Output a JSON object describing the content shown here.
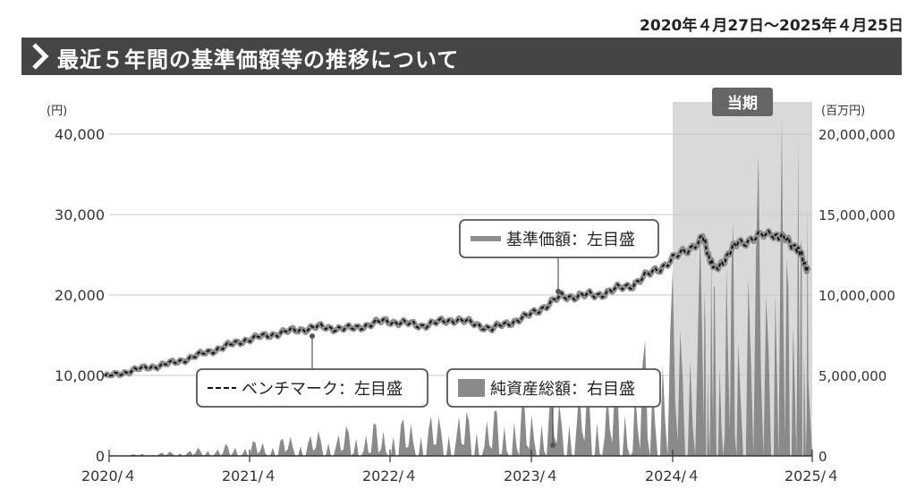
{
  "header": {
    "date_range": "2020年４月27日～2025年４月25日",
    "title": "最近５年間の基準価額等の推移について"
  },
  "colors": {
    "banner": "#454545",
    "nav": "#8f8f8f",
    "benchmark": "#111111",
    "area": "#8a8a8a",
    "period": "#d9d9d9",
    "grid": "#c8c8c8"
  },
  "chart_data": {
    "type": "line",
    "left_axis": {
      "unit": "(円)",
      "ylim": [
        0,
        40000
      ],
      "ticks": [
        "40,000",
        "30,000",
        "20,000",
        "10,000",
        "0"
      ],
      "tick_values": [
        40000,
        30000,
        20000,
        10000,
        0
      ]
    },
    "right_axis": {
      "unit": "(百万円)",
      "ylim": [
        0,
        20000000
      ],
      "ticks": [
        "20,000,000",
        "15,000,000",
        "10,000,000",
        "5,000,000",
        "0"
      ]
    },
    "x_ticks": [
      "2020/４",
      "2021/４",
      "2022/４",
      "2023/４",
      "2024/４",
      "2025/４"
    ],
    "current_period": {
      "label": "当期",
      "start": "2024-04",
      "end": "2025-04"
    },
    "legend": {
      "nav": "基準価額：左目盛",
      "benchmark": "ベンチマーク：左目盛",
      "net_assets": "純資産総額：右目盛"
    },
    "x": [
      "2020-04",
      "2020-07",
      "2020-10",
      "2021-01",
      "2021-04",
      "2021-07",
      "2021-10",
      "2022-01",
      "2022-04",
      "2022-07",
      "2022-10",
      "2023-01",
      "2023-04",
      "2023-07",
      "2023-10",
      "2024-01",
      "2024-04",
      "2024-07",
      "2024-08",
      "2024-10",
      "2025-01",
      "2025-03",
      "2025-04"
    ],
    "series": [
      {
        "name": "基準価額",
        "axis": "left",
        "values": [
          9800,
          10800,
          11600,
          13000,
          14400,
          15300,
          16000,
          15800,
          16800,
          16200,
          17000,
          15800,
          17300,
          19800,
          20000,
          21300,
          24000,
          27000,
          23000,
          26500,
          27700,
          26000,
          23000
        ]
      },
      {
        "name": "ベンチマーク",
        "axis": "left",
        "values": [
          9800,
          10800,
          11600,
          13000,
          14400,
          15300,
          16000,
          15800,
          16800,
          16200,
          17000,
          15800,
          17300,
          19800,
          20000,
          21300,
          24000,
          27000,
          23000,
          26500,
          27700,
          26000,
          23000
        ]
      },
      {
        "name": "純資産総額",
        "axis": "right",
        "values": [
          0,
          30000,
          80000,
          160000,
          240000,
          330000,
          420000,
          520000,
          620000,
          700000,
          780000,
          820000,
          1000000,
          1150000,
          1300000,
          1500000,
          2900000,
          3800000,
          3600000,
          4300000,
          5300000,
          5400000,
          4700000
        ]
      }
    ]
  }
}
